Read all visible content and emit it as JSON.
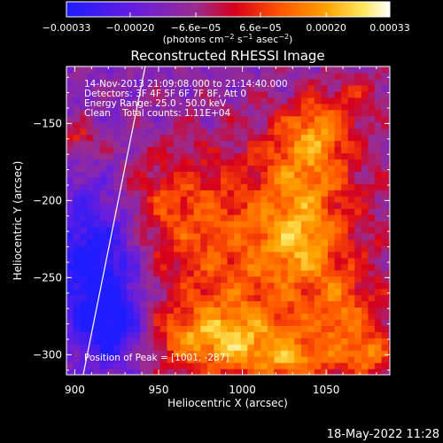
{
  "chart_data": {
    "type": "heatmap",
    "title": "Reconstructed RHESSI Image",
    "xlabel": "Heliocentric X (arcsec)",
    "ylabel": "Heliocentric Y (arcsec)",
    "xlim": [
      895,
      1088
    ],
    "ylim": [
      -313,
      -113
    ],
    "x_ticks": [
      900,
      950,
      1000,
      1050
    ],
    "x_tick_labels": [
      "900",
      "950",
      "1000",
      "1050"
    ],
    "y_ticks": [
      -150,
      -200,
      -250,
      -300
    ],
    "y_tick_labels": [
      "−150",
      "−200",
      "−250",
      "−300"
    ],
    "colorbar": {
      "range": [
        -0.00033,
        0.00033
      ],
      "ticks": [
        -0.00033,
        -0.0002,
        -6.6e-05,
        6.6e-05,
        0.0002,
        0.00033
      ],
      "tick_labels": [
        "−0.00033",
        "−0.00020",
        "−6.6e−05",
        "6.6e−05",
        "0.00020",
        "0.00033"
      ],
      "unit_base": "(photons cm",
      "unit_exp1": "−2",
      "unit_mid": " s",
      "unit_exp2": "−1",
      "unit_tail": " asec",
      "unit_exp3": "−2",
      "unit_end": ")",
      "colors": [
        "#1f1cff",
        "#6a1ddc",
        "#9b2c8e",
        "#d6001c",
        "#ff5500",
        "#ffa000",
        "#ffe860",
        "#ffffff"
      ]
    },
    "annotations": [
      "14-Nov-2013 21:09:08.000 to 21:14:40.000",
      "Detectors: 3F 4F 5F 6F 7F 8F, Att 0",
      "Energy Range: 25.0 - 50.0 keV",
      "Clean    Total counts: 1.11E+04"
    ],
    "peak_label": "Position of Peak = [1001, -287]",
    "limb_line": {
      "points": [
        [
          942,
          -113
        ],
        [
          905,
          -313
        ]
      ]
    },
    "emission_blobs": [
      {
        "x": 1005,
        "y": -240,
        "sx": 55,
        "sy": 55,
        "w": 0.00022
      },
      {
        "x": 1040,
        "y": -175,
        "sx": 20,
        "sy": 22,
        "w": 0.00018
      },
      {
        "x": 1045,
        "y": -150,
        "sx": 14,
        "sy": 14,
        "w": 0.00015
      },
      {
        "x": 985,
        "y": -290,
        "sx": 30,
        "sy": 14,
        "w": 0.00022
      },
      {
        "x": 1035,
        "y": -225,
        "sx": 16,
        "sy": 18,
        "w": 0.00015
      },
      {
        "x": 1060,
        "y": -275,
        "sx": 14,
        "sy": 18,
        "w": 0.00014
      },
      {
        "x": 955,
        "y": -200,
        "sx": 22,
        "sy": 20,
        "w": 0.0001
      },
      {
        "x": 1075,
        "y": -300,
        "sx": 10,
        "sy": 10,
        "w": 0.0002
      },
      {
        "x": 1030,
        "y": -305,
        "sx": 18,
        "sy": 10,
        "w": 0.00016
      },
      {
        "x": 903,
        "y": -160,
        "sx": 8,
        "sy": 8,
        "w": 0.00015
      },
      {
        "x": 912,
        "y": -240,
        "sx": 20,
        "sy": 35,
        "w": -0.00028
      },
      {
        "x": 925,
        "y": -283,
        "sx": 14,
        "sy": 18,
        "w": -0.00022
      },
      {
        "x": 1070,
        "y": -130,
        "sx": 14,
        "sy": 12,
        "w": 0.0001
      }
    ]
  },
  "footer": {
    "timestamp": "18-May-2022 11:28"
  }
}
